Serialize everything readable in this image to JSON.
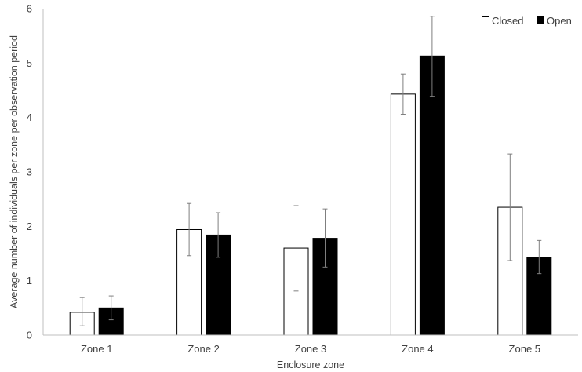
{
  "chart_data": {
    "type": "bar",
    "xlabel": "Enclosure zone",
    "ylabel": "Average number of individuals per zone per observation period",
    "categories": [
      "Zone 1",
      "Zone 2",
      "Zone 3",
      "Zone 4",
      "Zone 5"
    ],
    "ylim": [
      0,
      6
    ],
    "yticks": [
      0,
      1,
      2,
      3,
      4,
      5,
      6
    ],
    "grid": false,
    "legend_position": "top-right",
    "series": [
      {
        "name": "Closed",
        "fill": "#ffffff",
        "stroke": "#000000",
        "values": [
          0.42,
          1.94,
          1.6,
          4.43,
          2.35
        ],
        "error_low": [
          0.17,
          1.46,
          0.81,
          4.06,
          1.37
        ],
        "error_high": [
          0.69,
          2.42,
          2.38,
          4.8,
          3.33
        ]
      },
      {
        "name": "Open",
        "fill": "#000000",
        "stroke": "#000000",
        "values": [
          0.5,
          1.84,
          1.78,
          5.13,
          1.43
        ],
        "error_low": [
          0.28,
          1.43,
          1.25,
          4.39,
          1.13
        ],
        "error_high": [
          0.72,
          2.25,
          2.32,
          5.86,
          1.74
        ]
      }
    ]
  }
}
